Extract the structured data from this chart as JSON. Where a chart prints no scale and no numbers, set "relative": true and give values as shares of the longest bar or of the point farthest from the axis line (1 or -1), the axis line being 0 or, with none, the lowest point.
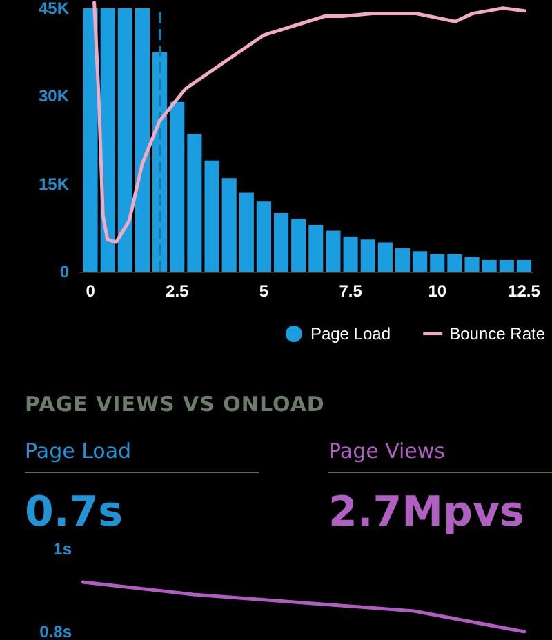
{
  "chart_data": [
    {
      "type": "histogram",
      "bins": [
        -0.25,
        0.25,
        0.75,
        1.25,
        1.75,
        2.25,
        2.75,
        3.25,
        3.75,
        4.25,
        4.75,
        5.25,
        5.75,
        6.25,
        6.75,
        7.25,
        7.75,
        8.25,
        8.75,
        9.25,
        9.75,
        10.25,
        10.75,
        11.25,
        11.75,
        12.25,
        12.75
      ],
      "series": [
        {
          "name": "Page Load",
          "color": "#1a9ee0",
          "values": [
            45000,
            45000,
            45000,
            45000,
            37500,
            29000,
            23500,
            19000,
            16000,
            13500,
            12000,
            10000,
            9000,
            8000,
            7000,
            6000,
            5500,
            5000,
            4000,
            3500,
            3000,
            3000,
            2500,
            2000,
            2000,
            2000
          ]
        }
      ],
      "xlim": [
        -0.3,
        12.75
      ],
      "xticks": [
        0,
        2.5,
        5,
        7.5,
        10,
        12.5
      ],
      "ylim": [
        0,
        45000
      ],
      "yticks": [
        {
          "value": 0,
          "label": "0"
        },
        {
          "value": 15000,
          "label": "15K"
        },
        {
          "value": 30000,
          "label": "30K"
        },
        {
          "value": 45000,
          "label": "45K"
        }
      ],
      "ref_lines": [
        {
          "axis": "x",
          "value": 2.0,
          "label": null,
          "color": "#1a7ab0",
          "line_style": "dashed"
        }
      ],
      "legend": "bottom right"
    },
    {
      "type": "line",
      "relative": true,
      "series": [
        {
          "name": "Bounce Rate",
          "color": "#f2a9c4",
          "x": [
            0.11,
            0.24,
            0.36,
            0.49,
            0.74,
            1.12,
            1.49,
            1.99,
            2.74,
            3.75,
            5.0,
            6.76,
            7.26,
            8.13,
            9.39,
            10.52,
            11.02,
            11.89,
            12.52
          ],
          "values": [
            1.0,
            0.65,
            0.21,
            0.12,
            0.11,
            0.19,
            0.4,
            0.56,
            0.68,
            0.77,
            0.88,
            0.95,
            0.95,
            0.96,
            0.96,
            0.93,
            0.96,
            0.98,
            0.97
          ]
        }
      ],
      "xlim": [
        -0.3,
        12.75
      ],
      "tick_labels": false,
      "legend": "bottom right"
    },
    {
      "type": "other",
      "title": "PAGE VIEWS VS ONLOAD",
      "annotations": [
        "Page Load",
        "0.7s",
        "Page Views",
        "2.7Mpvs"
      ]
    },
    {
      "type": "line",
      "categories": [
        null,
        null,
        null,
        null,
        null
      ],
      "series": [
        {
          "color": "#b05cc0",
          "values": [
            0.92,
            0.89,
            0.87,
            0.85,
            0.8
          ]
        }
      ],
      "ylim": [
        0.8,
        1
      ],
      "yticks": [
        {
          "value": 0.8,
          "label": "0.8s"
        },
        {
          "value": 1,
          "label": "1s"
        }
      ],
      "tick_labels": "y"
    }
  ]
}
